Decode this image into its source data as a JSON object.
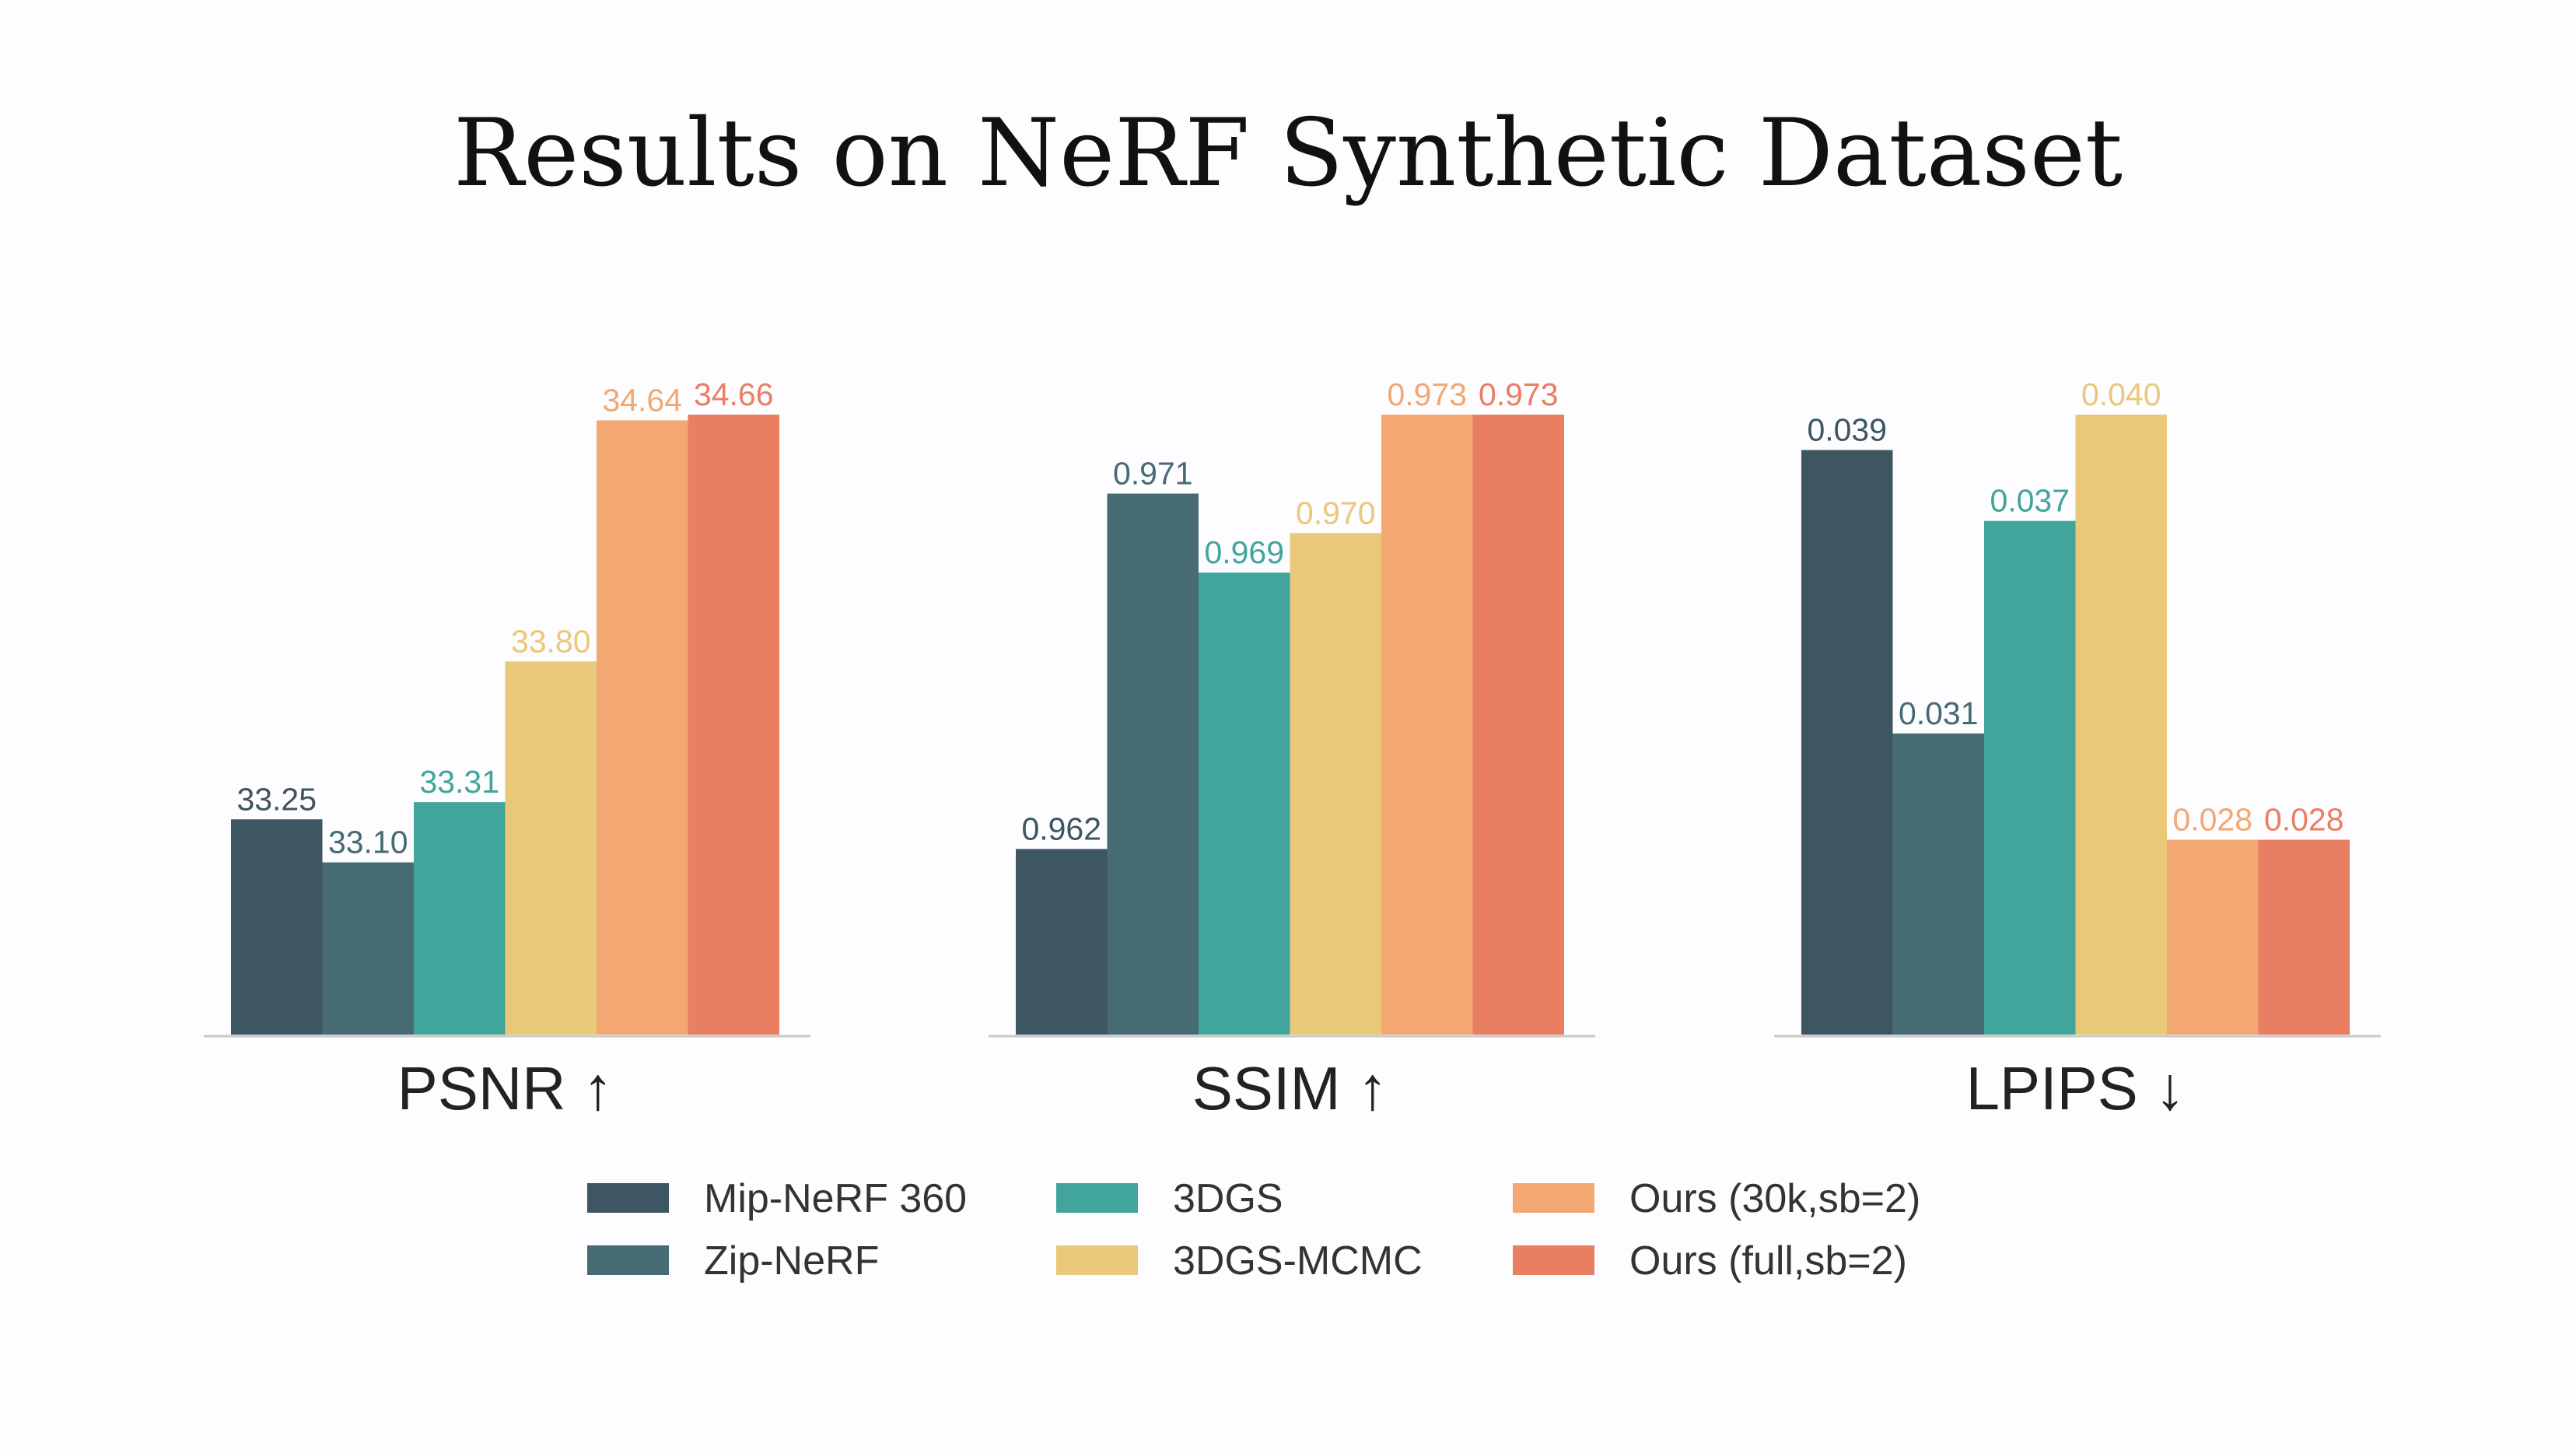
{
  "chart_data": {
    "type": "bar",
    "title": "Results on NeRF Synthetic Dataset",
    "series": [
      {
        "name": "Mip-NeRF 360",
        "color": "#3d5662"
      },
      {
        "name": "Zip-NeRF",
        "color": "#466b74"
      },
      {
        "name": "3DGS",
        "color": "#41a59c"
      },
      {
        "name": "3DGS-MCMC",
        "color": "#e9c879"
      },
      {
        "name": "Ours (30k,sb=2)",
        "color": "#f3a873"
      },
      {
        "name": "Ours (full,sb=2)",
        "color": "#e97f62"
      }
    ],
    "panels": [
      {
        "label": "PSNR ↑",
        "ylim": [
          32.5,
          34.66
        ],
        "values": [
          33.25,
          33.1,
          33.31,
          33.8,
          34.64,
          34.66
        ],
        "value_labels": [
          "33.25",
          "33.10",
          "33.31",
          "33.80",
          "34.64",
          "34.66"
        ]
      },
      {
        "label": "SSIM ↑",
        "ylim": [
          0.9573,
          0.973
        ],
        "values": [
          0.962,
          0.971,
          0.969,
          0.97,
          0.973,
          0.973
        ],
        "value_labels": [
          "0.962",
          "0.971",
          "0.969",
          "0.970",
          "0.973",
          "0.973"
        ]
      },
      {
        "label": "LPIPS ↓",
        "ylim": [
          0.0225,
          0.04
        ],
        "values": [
          0.039,
          0.031,
          0.037,
          0.04,
          0.028,
          0.028
        ],
        "value_labels": [
          "0.039",
          "0.031",
          "0.037",
          "0.040",
          "0.028",
          "0.028"
        ]
      }
    ],
    "value_colors": [
      "#3d5662",
      "#466b74",
      "#41a59c",
      "#e9c879",
      "#f3a873",
      "#e97f62"
    ],
    "grid": false,
    "legend": "bottom"
  }
}
